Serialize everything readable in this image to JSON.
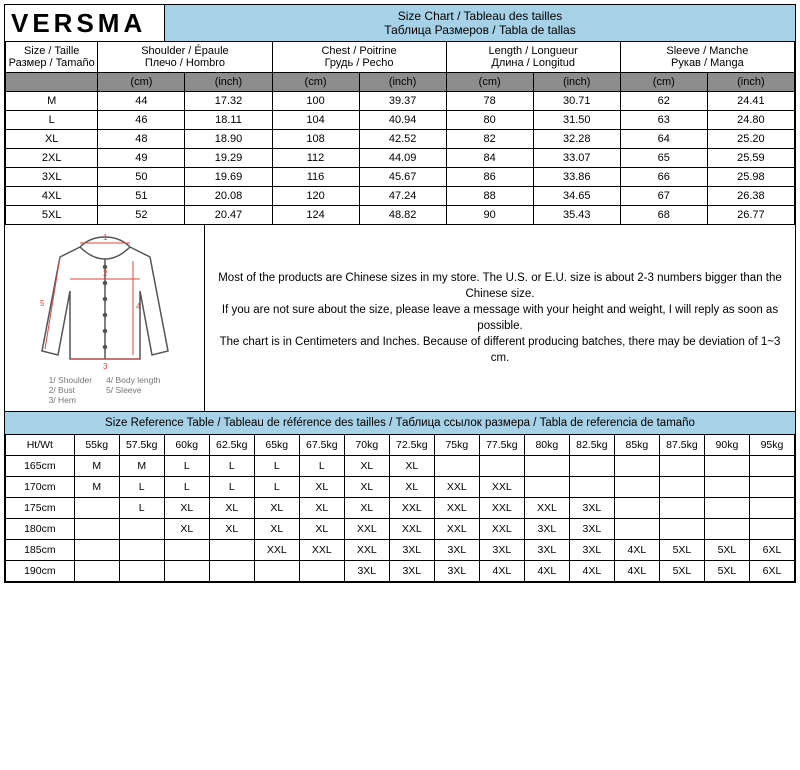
{
  "brand": "VERSMA",
  "title_line1": "Size Chart / Tableau des tailles",
  "title_line2": "Таблица Размеров / Tabla de tallas",
  "columns": {
    "size": {
      "l1": "Size / Taille",
      "l2": "Размер / Tamaño"
    },
    "shoulder": {
      "l1": "Shoulder / Épaule",
      "l2": "Плечо / Hombro"
    },
    "chest": {
      "l1": "Chest / Poitrine",
      "l2": "Грудь / Pecho"
    },
    "length": {
      "l1": "Length / Longueur",
      "l2": "Длина / Longitud"
    },
    "sleeve": {
      "l1": "Sleeve / Manche",
      "l2": "Рукав / Manga"
    }
  },
  "units": {
    "cm": "(cm)",
    "inch": "(inch)"
  },
  "sizes": [
    {
      "name": "M",
      "shoulder_cm": "44",
      "shoulder_in": "17.32",
      "chest_cm": "100",
      "chest_in": "39.37",
      "length_cm": "78",
      "length_in": "30.71",
      "sleeve_cm": "62",
      "sleeve_in": "24.41"
    },
    {
      "name": "L",
      "shoulder_cm": "46",
      "shoulder_in": "18.11",
      "chest_cm": "104",
      "chest_in": "40.94",
      "length_cm": "80",
      "length_in": "31.50",
      "sleeve_cm": "63",
      "sleeve_in": "24.80"
    },
    {
      "name": "XL",
      "shoulder_cm": "48",
      "shoulder_in": "18.90",
      "chest_cm": "108",
      "chest_in": "42.52",
      "length_cm": "82",
      "length_in": "32.28",
      "sleeve_cm": "64",
      "sleeve_in": "25.20"
    },
    {
      "name": "2XL",
      "shoulder_cm": "49",
      "shoulder_in": "19.29",
      "chest_cm": "112",
      "chest_in": "44.09",
      "length_cm": "84",
      "length_in": "33.07",
      "sleeve_cm": "65",
      "sleeve_in": "25.59"
    },
    {
      "name": "3XL",
      "shoulder_cm": "50",
      "shoulder_in": "19.69",
      "chest_cm": "116",
      "chest_in": "45.67",
      "length_cm": "86",
      "length_in": "33.86",
      "sleeve_cm": "66",
      "sleeve_in": "25.98"
    },
    {
      "name": "4XL",
      "shoulder_cm": "51",
      "shoulder_in": "20.08",
      "chest_cm": "120",
      "chest_in": "47.24",
      "length_cm": "88",
      "length_in": "34.65",
      "sleeve_cm": "67",
      "sleeve_in": "26.38"
    },
    {
      "name": "5XL",
      "shoulder_cm": "52",
      "shoulder_in": "20.47",
      "chest_cm": "124",
      "chest_in": "48.82",
      "length_cm": "90",
      "length_in": "35.43",
      "sleeve_cm": "68",
      "sleeve_in": "26.77"
    }
  ],
  "diagram_legend": {
    "col1": {
      "a": "1/ Shoulder",
      "b": "2/ Bust",
      "c": "3/ Hem"
    },
    "col2": {
      "a": "4/ Body length",
      "b": "5/ Sleeve"
    }
  },
  "info": {
    "p1": "Most of the products are Chinese sizes in my store. The U.S. or E.U. size is about 2-3 numbers bigger than the Chinese size.",
    "p2": "If you are not sure about the size, please leave a message with your height and weight, I will reply as soon as possible.",
    "p3": "The chart is in Centimeters and Inches. Because of different producing batches, there may be deviation of 1~3 cm."
  },
  "ref_title": "Size Reference Table / Tableau de référence des tailles / Таблица ссылок размера / Tabla de referencia de tamaño",
  "ref": {
    "header": [
      "Ht/Wt",
      "55kg",
      "57.5kg",
      "60kg",
      "62.5kg",
      "65kg",
      "67.5kg",
      "70kg",
      "72.5kg",
      "75kg",
      "77.5kg",
      "80kg",
      "82.5kg",
      "85kg",
      "87.5kg",
      "90kg",
      "95kg"
    ],
    "rows": [
      [
        "165cm",
        "M",
        "M",
        "L",
        "L",
        "L",
        "L",
        "XL",
        "XL",
        "",
        "",
        "",
        "",
        "",
        "",
        "",
        ""
      ],
      [
        "170cm",
        "M",
        "L",
        "L",
        "L",
        "L",
        "XL",
        "XL",
        "XL",
        "XXL",
        "XXL",
        "",
        "",
        "",
        "",
        "",
        ""
      ],
      [
        "175cm",
        "",
        "L",
        "XL",
        "XL",
        "XL",
        "XL",
        "XL",
        "XXL",
        "XXL",
        "XXL",
        "XXL",
        "3XL",
        "",
        "",
        "",
        ""
      ],
      [
        "180cm",
        "",
        "",
        "XL",
        "XL",
        "XL",
        "XL",
        "XXL",
        "XXL",
        "XXL",
        "XXL",
        "3XL",
        "3XL",
        "",
        "",
        "",
        ""
      ],
      [
        "185cm",
        "",
        "",
        "",
        "",
        "XXL",
        "XXL",
        "XXL",
        "3XL",
        "3XL",
        "3XL",
        "3XL",
        "3XL",
        "4XL",
        "5XL",
        "5XL",
        "6XL"
      ],
      [
        "190cm",
        "",
        "",
        "",
        "",
        "",
        "",
        "3XL",
        "3XL",
        "3XL",
        "4XL",
        "4XL",
        "4XL",
        "4XL",
        "5XL",
        "5XL",
        "6XL"
      ]
    ]
  },
  "colors": {
    "header_bg": "#a6d1e6",
    "gray": "#8d8d8d",
    "border": "#000000"
  }
}
